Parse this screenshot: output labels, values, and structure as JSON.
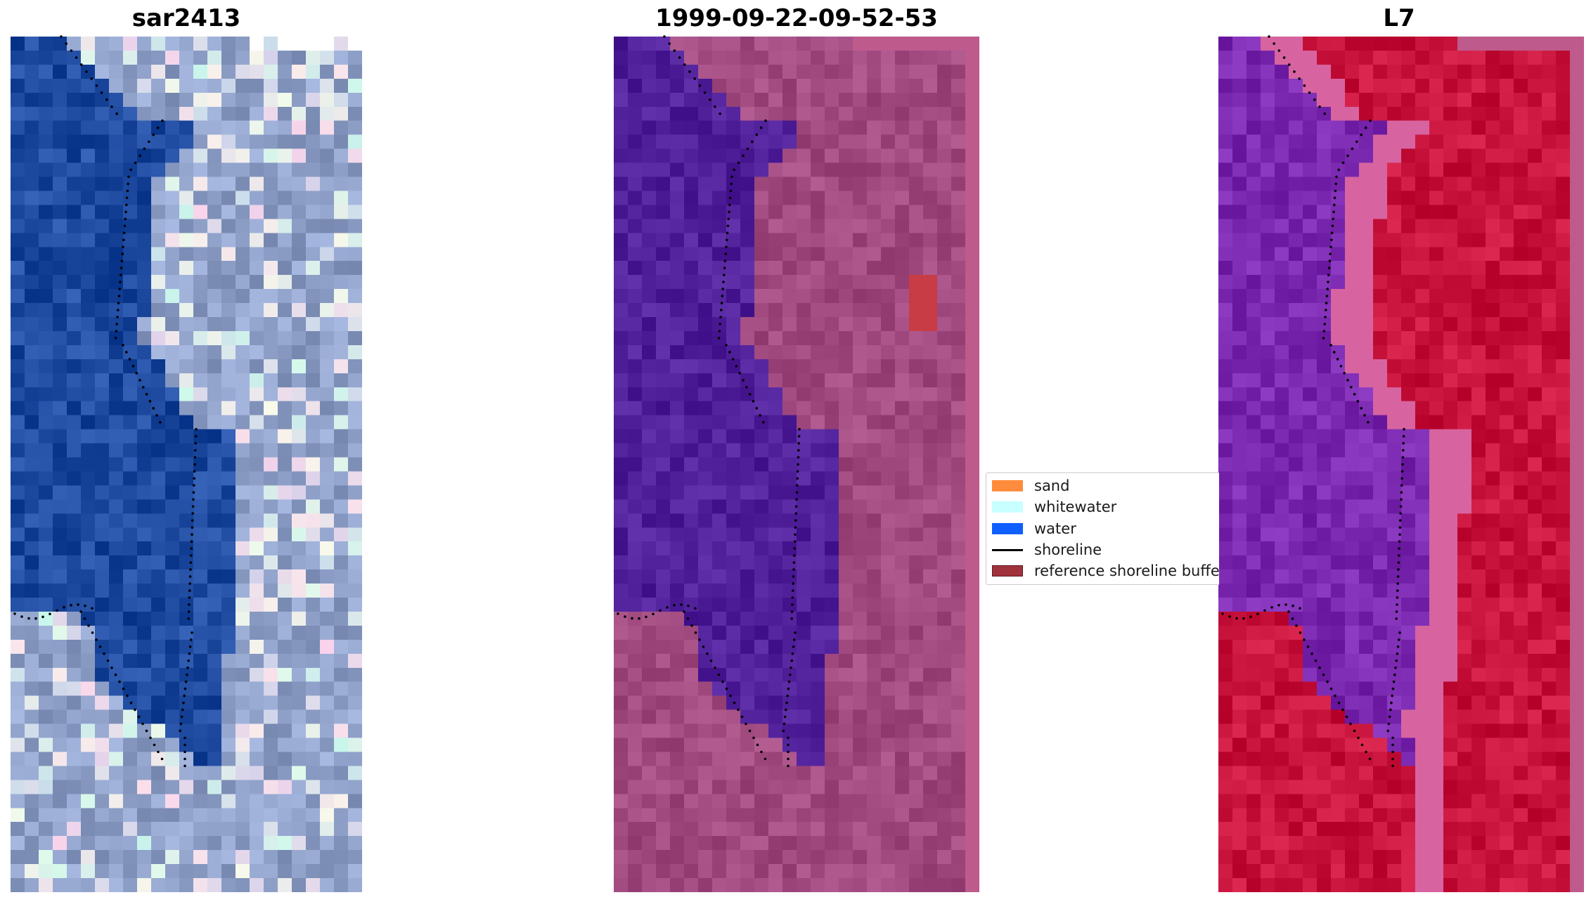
{
  "panels": [
    {
      "title": "sar2413",
      "kind": "rgb-image"
    },
    {
      "title": "1999-09-22-09-52-53",
      "kind": "classified-image"
    },
    {
      "title": "L7",
      "kind": "water-index-image"
    }
  ],
  "legend": {
    "items": [
      {
        "label": "sand",
        "color": "#ff8c3c",
        "type": "patch"
      },
      {
        "label": "whitewater",
        "color": "#c8ffff",
        "type": "patch"
      },
      {
        "label": "water",
        "color": "#0f5fff",
        "type": "patch"
      },
      {
        "label": "shoreline",
        "color": "#000000",
        "type": "line"
      },
      {
        "label": "reference shoreline buffe",
        "color": "#a0323c",
        "type": "patch"
      }
    ]
  },
  "colors": {
    "shoreline_dots": "#000000",
    "water_class": "#50209a",
    "land_overlay": "#a04a80",
    "ndwi_water": "#7a28b0",
    "ndwi_land": "#c8143c",
    "rgb_water": "#1e4aa0",
    "rgb_land": "#8ea0c8"
  }
}
